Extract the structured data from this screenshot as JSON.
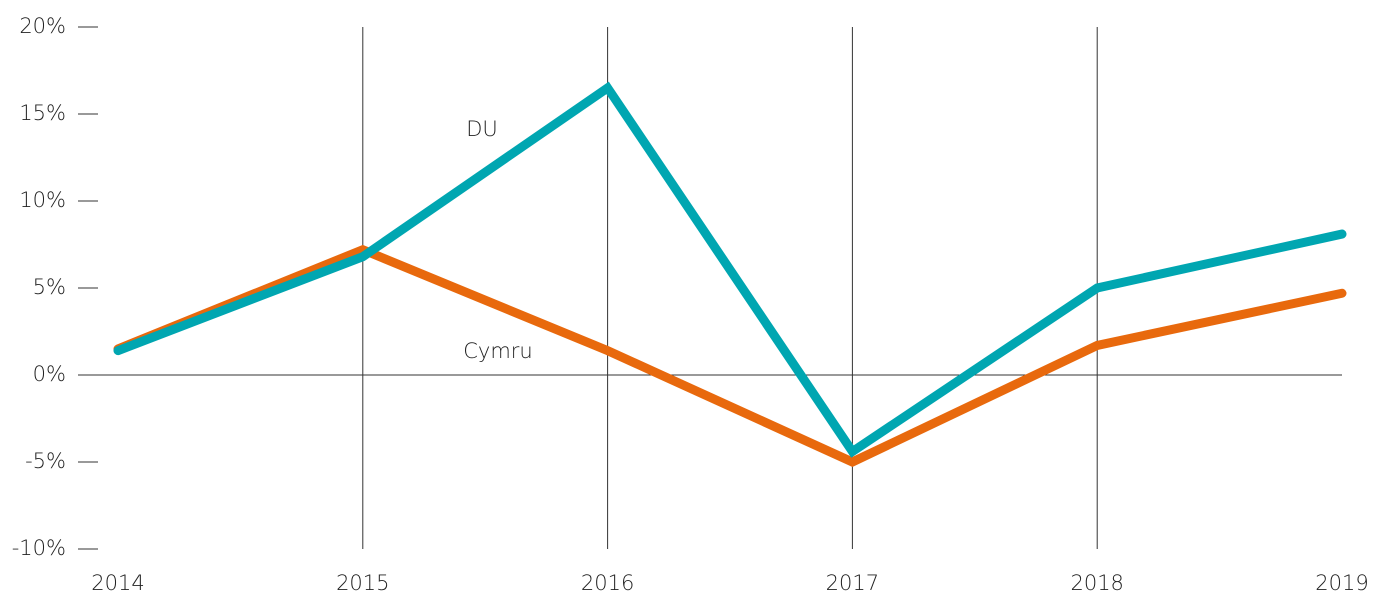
{
  "chart_data": {
    "type": "line",
    "x": [
      2014,
      2015,
      2016,
      2017,
      2018,
      2019
    ],
    "xlim": [
      2014,
      2019
    ],
    "xticks": [
      2014,
      2015,
      2016,
      2017,
      2018,
      2019
    ],
    "ylim": [
      -10,
      20
    ],
    "yticks": [
      {
        "value": -10,
        "label": "-10%"
      },
      {
        "value": -5,
        "label": "-5%"
      },
      {
        "value": 0,
        "label": "0%"
      },
      {
        "value": 5,
        "label": "5%"
      },
      {
        "value": 10,
        "label": "10%"
      },
      {
        "value": 15,
        "label": "15%"
      },
      {
        "value": 20,
        "label": "20%"
      }
    ],
    "grid": true,
    "series": [
      {
        "name": "Cymru",
        "color": "#e8690d",
        "values": [
          1.5,
          7.2,
          1.4,
          -5.0,
          1.7,
          4.7
        ]
      },
      {
        "name": "DU",
        "color": "#00a6b1",
        "values": [
          1.4,
          6.8,
          16.5,
          -4.4,
          5.0,
          8.1
        ]
      }
    ]
  }
}
